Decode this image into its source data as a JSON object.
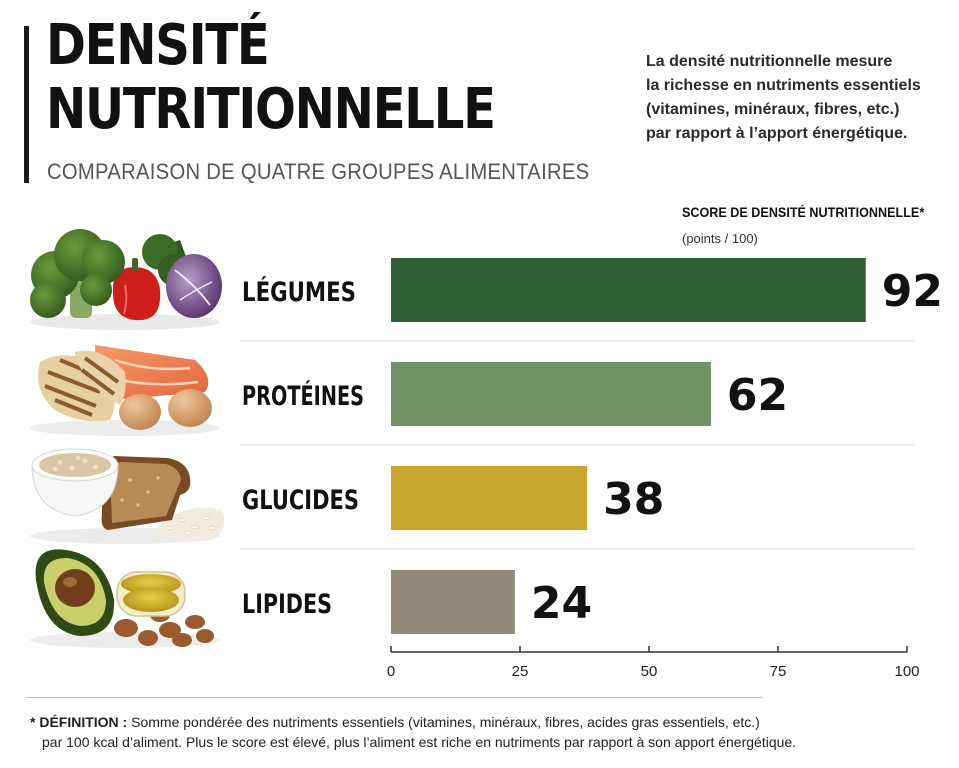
{
  "header": {
    "title_line1": "DENSITÉ",
    "title_line2": "NUTRITIONNELLE",
    "subtitle": "COMPARAISON DE QUATRE GROUPES ALIMENTAIRES",
    "intro": [
      "La densité nutritionnelle mesure",
      "la richesse en nutriments essentiels",
      "(vitamines, minéraux, fibres, etc.)",
      "par rapport à l’apport énergétique."
    ]
  },
  "chart_data": {
    "type": "bar",
    "orientation": "horizontal",
    "title": "SCORE DE DENSITÉ NUTRITIONNELLE*",
    "unit_label": "(points / 100)",
    "categories": [
      "LÉGUMES",
      "PROTÉINES",
      "GLUCIDES",
      "LIPIDES"
    ],
    "values": [
      92,
      62,
      38,
      24
    ],
    "colors": [
      "#2f5e34",
      "#6f9262",
      "#c9a72e",
      "#8f8a79"
    ],
    "xlim": [
      0,
      100
    ],
    "xticks": [
      0,
      25,
      50,
      75,
      100
    ],
    "grid": false
  },
  "footnote": {
    "label": "* DÉFINITION :",
    "line1": "Somme pondérée des nutriments essentiels (vitamines, minéraux, fibres, acides gras essentiels, etc.)",
    "line2": "par 100 kcal d’aliment. Plus le score est élevé, plus l’aliment est riche en nutriments par rapport à son apport énergétique."
  },
  "food_icons": [
    "vegetables-illustration",
    "proteins-illustration",
    "carbohydrates-illustration",
    "lipids-illustration"
  ]
}
